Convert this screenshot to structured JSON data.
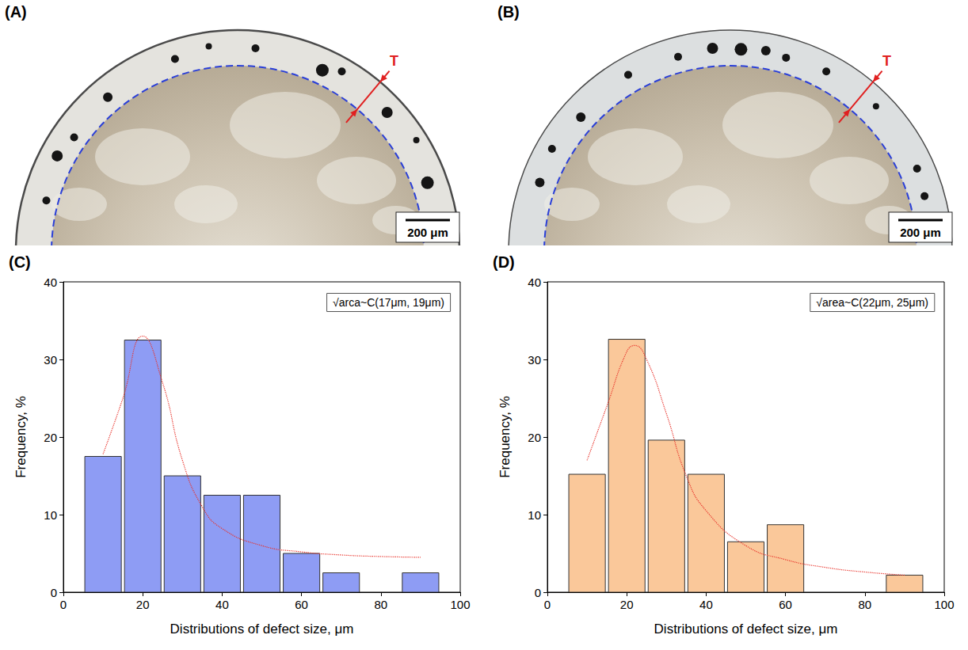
{
  "images": [
    {
      "label": "(A)",
      "marker": "T",
      "scale_bar": "200 μm"
    },
    {
      "label": "(B)",
      "marker": "T",
      "scale_bar": "200 μm"
    }
  ],
  "chart_data": [
    {
      "type": "histogram",
      "title": "(C)",
      "annotation": "√arca~C(17μm, 19μm)",
      "x_label": "Distributions of defect size, μm",
      "y_label": "Frequency, %",
      "bins": [
        5,
        15,
        25,
        35,
        45,
        55,
        65,
        75,
        85,
        95
      ],
      "values": [
        17.5,
        32.5,
        15,
        12.5,
        12.5,
        5,
        2.5,
        0,
        2.5
      ],
      "color": "#8e9cf4",
      "xlim": [
        0,
        100
      ],
      "xticks": [
        0,
        20,
        40,
        60,
        80,
        100
      ],
      "ylim": [
        0,
        40
      ],
      "yticks": [
        0,
        10,
        20,
        30,
        40
      ],
      "fit": {
        "type": "line",
        "color": "#e8322a",
        "line_style": "dotted",
        "x": [
          10,
          15,
          20,
          25,
          30,
          35,
          40,
          50,
          60,
          70,
          80,
          90
        ],
        "values": [
          17.8,
          25,
          33,
          27,
          17,
          11,
          8.2,
          6,
          5.2,
          4.8,
          4.6,
          4.5
        ]
      }
    },
    {
      "type": "histogram",
      "title": "(D)",
      "annotation": "√area~C(22μm, 25μm)",
      "x_label": "Distributions of defect size, μm",
      "y_label": "Frequency, %",
      "bins": [
        5,
        15,
        25,
        35,
        45,
        55,
        65,
        75,
        85,
        95
      ],
      "values": [
        15.2,
        32.6,
        19.6,
        15.2,
        6.5,
        8.7,
        0,
        0,
        2.2
      ],
      "color": "#fac89a",
      "xlim": [
        0,
        100
      ],
      "xticks": [
        0,
        20,
        40,
        60,
        80,
        100
      ],
      "ylim": [
        0,
        40
      ],
      "yticks": [
        0,
        10,
        20,
        30,
        40
      ],
      "fit": {
        "type": "line",
        "color": "#e8322a",
        "line_style": "dotted",
        "x": [
          10,
          15,
          20,
          22,
          25,
          30,
          35,
          40,
          50,
          60,
          70,
          80,
          90
        ],
        "values": [
          17,
          24,
          31,
          31.8,
          30,
          23,
          15,
          10.5,
          6,
          4.2,
          3.2,
          2.6,
          2.2
        ]
      }
    }
  ]
}
